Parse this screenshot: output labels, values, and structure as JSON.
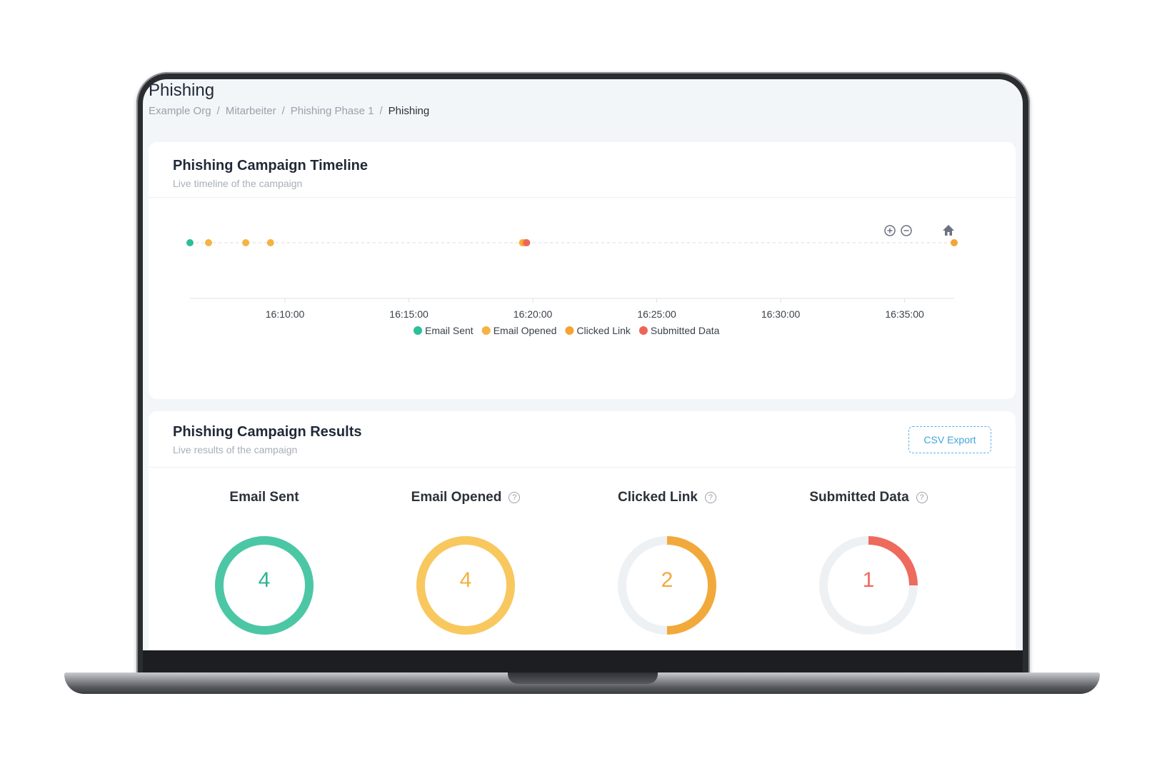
{
  "page": {
    "title": "Phishing",
    "breadcrumb": [
      "Example Org",
      "Mitarbeiter",
      "Phishing Phase 1",
      "Phishing"
    ],
    "breadcrumb_separator": "/"
  },
  "timeline": {
    "title": "Phishing Campaign Timeline",
    "subtitle": "Live timeline of the campaign",
    "legend": [
      {
        "label": "Email Sent",
        "color": "#2bbf9a"
      },
      {
        "label": "Email Opened",
        "color": "#f5b341"
      },
      {
        "label": "Clicked Link",
        "color": "#f5a334"
      },
      {
        "label": "Submitted Data",
        "color": "#ee6457"
      }
    ],
    "toolbar": {
      "zoom_in_icon": "zoom-in-icon",
      "zoom_out_icon": "zoom-out-icon",
      "reset_icon": "home-icon"
    }
  },
  "chart_data": {
    "type": "scatter",
    "x_ticks": [
      "16:10:00",
      "16:15:00",
      "16:20:00",
      "16:25:00",
      "16:30:00",
      "16:35:00"
    ],
    "xlim": [
      "16:06:10",
      "16:37:00"
    ],
    "series": [
      {
        "name": "Email Sent",
        "color": "#2bbf9a",
        "x": [
          "16:06:10"
        ]
      },
      {
        "name": "Email Opened",
        "color": "#f5b341",
        "x": [
          "16:06:55",
          "16:08:25",
          "16:09:25",
          "16:19:35"
        ]
      },
      {
        "name": "Clicked Link",
        "color": "#f5a334",
        "x": [
          "16:19:40",
          "16:37:00"
        ]
      },
      {
        "name": "Submitted Data",
        "color": "#ee6457",
        "x": [
          "16:19:45"
        ]
      }
    ]
  },
  "results": {
    "title": "Phishing Campaign Results",
    "subtitle": "Live results of the campaign",
    "export_label": "CSV Export",
    "total": 4,
    "metrics": [
      {
        "label": "Email Sent",
        "value": "4",
        "fraction": 1.0,
        "color": "#4cc7a5",
        "text_color": "#2bb393",
        "help": false
      },
      {
        "label": "Email Opened",
        "value": "4",
        "fraction": 1.0,
        "color": "#f8c85f",
        "text_color": "#f2b13d",
        "help": true
      },
      {
        "label": "Clicked Link",
        "value": "2",
        "fraction": 0.5,
        "color": "#f2a93b",
        "text_color": "#f2a93b",
        "help": true
      },
      {
        "label": "Submitted Data",
        "value": "1",
        "fraction": 0.25,
        "color": "#ee6a5c",
        "text_color": "#ee6a5c",
        "help": true
      }
    ]
  }
}
